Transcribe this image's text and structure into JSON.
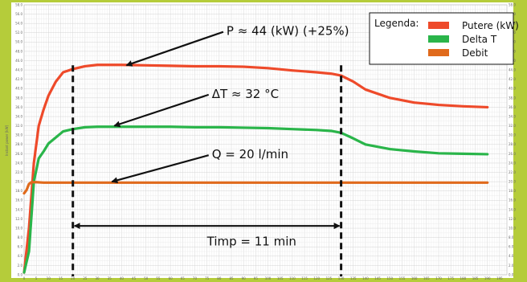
{
  "chart_data": {
    "type": "line",
    "ylabel": "Instant power [kW]",
    "xlim": [
      0,
      198
    ],
    "ylim": [
      0,
      58
    ],
    "grid": true,
    "legend": {
      "title": "Legenda:",
      "placement": "top-right",
      "items": [
        {
          "label": "Putere (kW)",
          "color": "#ee4a2a"
        },
        {
          "label": "Delta T",
          "color": "#2ab54a"
        },
        {
          "label": "Debit",
          "color": "#e06a1c"
        }
      ]
    },
    "series": [
      {
        "name": "Putere (kW)",
        "color": "#ee4a2a",
        "x": [
          0,
          2,
          4,
          6,
          8,
          10,
          13,
          16,
          20,
          25,
          30,
          40,
          50,
          60,
          70,
          80,
          90,
          100,
          110,
          120,
          126,
          130,
          135,
          140,
          150,
          160,
          170,
          180,
          190
        ],
        "y": [
          0.5,
          10,
          24,
          32,
          35.5,
          38.5,
          41.5,
          43.5,
          44.2,
          44.8,
          45.1,
          45.1,
          45.0,
          44.9,
          44.8,
          44.8,
          44.7,
          44.4,
          43.9,
          43.5,
          43.2,
          42.8,
          41.5,
          39.8,
          38.0,
          37.0,
          36.5,
          36.2,
          36.0
        ]
      },
      {
        "name": "Delta T",
        "color": "#2ab54a",
        "x": [
          0,
          2,
          4,
          6,
          8,
          10,
          13,
          16,
          20,
          25,
          30,
          40,
          50,
          60,
          70,
          80,
          90,
          100,
          110,
          120,
          126,
          130,
          135,
          140,
          150,
          160,
          170,
          180,
          190
        ],
        "y": [
          0.5,
          5,
          20,
          25,
          26.5,
          28.2,
          29.5,
          30.8,
          31.3,
          31.7,
          31.8,
          31.8,
          31.8,
          31.8,
          31.7,
          31.7,
          31.6,
          31.5,
          31.3,
          31.1,
          30.9,
          30.5,
          29.3,
          28.0,
          27.0,
          26.5,
          26.1,
          26.0,
          25.9
        ]
      },
      {
        "name": "Debit",
        "color": "#e06a1c",
        "x": [
          0,
          1,
          2,
          3,
          5,
          8,
          20,
          50,
          100,
          150,
          190
        ],
        "y": [
          17.5,
          18.2,
          19.5,
          19.9,
          19.9,
          19.8,
          19.8,
          19.8,
          19.8,
          19.8,
          19.8
        ]
      }
    ],
    "annotations": [
      {
        "text": "P ≈ 44 (kW) (+25%)",
        "x": 83,
        "y": 51.5,
        "arrow_to": [
          42,
          45
        ]
      },
      {
        "text": "ΔT ≈ 32 °C",
        "x": 77,
        "y": 38,
        "arrow_to": [
          37,
          32
        ]
      },
      {
        "text": "Q = 20 l/min",
        "x": 77,
        "y": 25,
        "arrow_to": [
          36,
          20
        ]
      },
      {
        "text": "Timp = 11 min",
        "x": 75,
        "y": 6.3
      }
    ],
    "vlines": [
      20,
      130
    ],
    "span_arrow": [
      20,
      130
    ],
    "span_arrow_y": 10.5,
    "xticks": [
      0,
      5,
      10,
      15,
      20,
      25,
      30,
      35,
      40,
      45,
      50,
      55,
      60,
      65,
      70,
      75,
      80,
      85,
      90,
      95,
      100,
      105,
      110,
      115,
      120,
      125,
      130,
      135,
      140,
      145,
      150,
      155,
      160,
      165,
      170,
      175,
      180,
      185,
      190,
      195
    ],
    "xticklabels": [
      "0",
      "5",
      "10",
      "15",
      "20",
      "25",
      "30",
      "35",
      "40",
      "45",
      "50",
      "55",
      "60",
      "65",
      "70",
      "75",
      "80",
      "85",
      "90",
      "95",
      "100",
      "105",
      "110",
      "115",
      "120",
      "125",
      "130",
      "135",
      "140",
      "145",
      "150",
      "155",
      "160",
      "165",
      "170",
      "175",
      "180",
      "185",
      "190",
      "195"
    ],
    "yticks": [
      0,
      2,
      4,
      6,
      8,
      10,
      12,
      14,
      16,
      18,
      20,
      22,
      24,
      26,
      28,
      30,
      32,
      34,
      36,
      38,
      40,
      42,
      44,
      46,
      48,
      50,
      52,
      54,
      56,
      58
    ],
    "yticklabels": [
      "0.0",
      "2.0",
      "4.0",
      "6.0",
      "8.0",
      "10.0",
      "12.0",
      "14.0",
      "16.0",
      "18.0",
      "20.0",
      "22.0",
      "24.0",
      "26.0",
      "28.0",
      "30.0",
      "32.0",
      "34.0",
      "36.0",
      "38.0",
      "40.0",
      "42.0",
      "44.0",
      "46.0",
      "48.0",
      "50.0",
      "52.0",
      "54.0",
      "56.0",
      "58.0"
    ]
  }
}
